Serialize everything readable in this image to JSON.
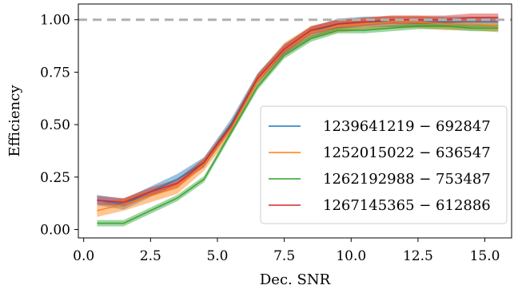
{
  "chart_data": {
    "type": "line",
    "title": "",
    "xlabel": "Dec. SNR",
    "ylabel": "Efficiency",
    "xlim": [
      -0.2,
      16.0
    ],
    "ylim": [
      -0.04,
      1.075
    ],
    "xticks": [
      0.0,
      2.5,
      5.0,
      7.5,
      10.0,
      12.5,
      15.0
    ],
    "xtick_labels": [
      "0.0",
      "2.5",
      "5.0",
      "7.5",
      "10.0",
      "12.5",
      "15.0"
    ],
    "yticks": [
      0.0,
      0.25,
      0.5,
      0.75,
      1.0
    ],
    "ytick_labels": [
      "0.00",
      "0.25",
      "0.50",
      "0.75",
      "1.00"
    ],
    "reference_line": {
      "y": 1.0,
      "style": "dashed",
      "color": "#b0b0b0"
    },
    "legend_position": "lower-right",
    "grid": false,
    "x": [
      0.5,
      1.5,
      2.5,
      3.5,
      4.5,
      5.5,
      6.5,
      7.5,
      8.5,
      9.5,
      10.5,
      11.5,
      12.5,
      13.5,
      14.5,
      15.5
    ],
    "series": [
      {
        "name": "1239641219 − 692847",
        "color": "#1f77b4",
        "values": [
          0.14,
          0.12,
          0.18,
          0.24,
          0.32,
          0.5,
          0.72,
          0.86,
          0.94,
          0.98,
          0.99,
          0.99,
          0.99,
          0.99,
          0.99,
          0.99
        ],
        "band": 0.025
      },
      {
        "name": "1252015022 − 636547",
        "color": "#ff7f0e",
        "values": [
          0.09,
          0.12,
          0.16,
          0.2,
          0.31,
          0.48,
          0.71,
          0.86,
          0.94,
          0.97,
          0.98,
          0.99,
          0.99,
          0.98,
          0.98,
          0.97
        ],
        "band": 0.03
      },
      {
        "name": "1262192988 − 753487",
        "color": "#2ca02c",
        "values": [
          0.03,
          0.03,
          0.09,
          0.15,
          0.24,
          0.46,
          0.68,
          0.83,
          0.91,
          0.95,
          0.95,
          0.96,
          0.97,
          0.97,
          0.96,
          0.96
        ],
        "band": 0.015
      },
      {
        "name": "1267145365 − 612886",
        "color": "#d62728",
        "values": [
          0.14,
          0.13,
          0.18,
          0.22,
          0.32,
          0.49,
          0.72,
          0.86,
          0.95,
          0.98,
          0.99,
          1.0,
          1.0,
          1.0,
          1.01,
          1.01
        ],
        "band": 0.02
      }
    ]
  }
}
